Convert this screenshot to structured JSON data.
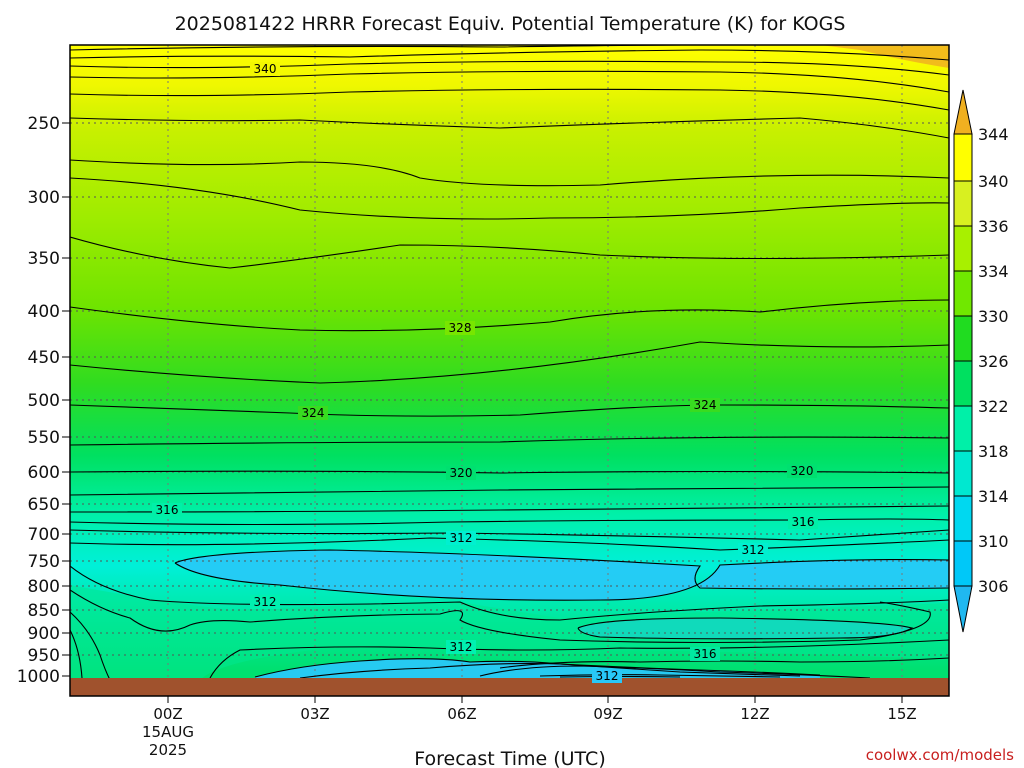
{
  "chart_data": {
    "type": "contour",
    "title": "2025081422 HRRR Forecast Equiv. Potential Temperature (K) for KOGS",
    "xlabel": "Forecast Time (UTC)",
    "ylabel": "",
    "x_ticks": [
      {
        "label": "00Z",
        "sub": [
          "15AUG",
          "2025"
        ]
      },
      {
        "label": "03Z",
        "sub": []
      },
      {
        "label": "06Z",
        "sub": []
      },
      {
        "label": "09Z",
        "sub": []
      },
      {
        "label": "12Z",
        "sub": []
      },
      {
        "label": "15Z",
        "sub": []
      }
    ],
    "y_ticks": [
      "250",
      "300",
      "350",
      "400",
      "450",
      "500",
      "550",
      "600",
      "650",
      "700",
      "750",
      "800",
      "850",
      "900",
      "950",
      "1000"
    ],
    "ylim": [
      1000,
      200
    ],
    "yscale": "log-pressure",
    "grid": true,
    "colorbar": {
      "labels": [
        "344",
        "340",
        "336",
        "334",
        "330",
        "326",
        "322",
        "318",
        "314",
        "310",
        "306"
      ],
      "colors": [
        "#f0b020",
        "#ffff00",
        "#d8f020",
        "#a8f000",
        "#70e800",
        "#20dc20",
        "#00e060",
        "#00f0a8",
        "#00e8d0",
        "#00d0f8",
        "#20b8f0"
      ]
    },
    "contour_labels": [
      "340",
      "328",
      "324",
      "324",
      "320",
      "320",
      "316",
      "316",
      "312",
      "312",
      "312",
      "312",
      "316",
      "312"
    ],
    "ground_color": "#a0522d"
  },
  "watermark": "coolwx.com/models"
}
